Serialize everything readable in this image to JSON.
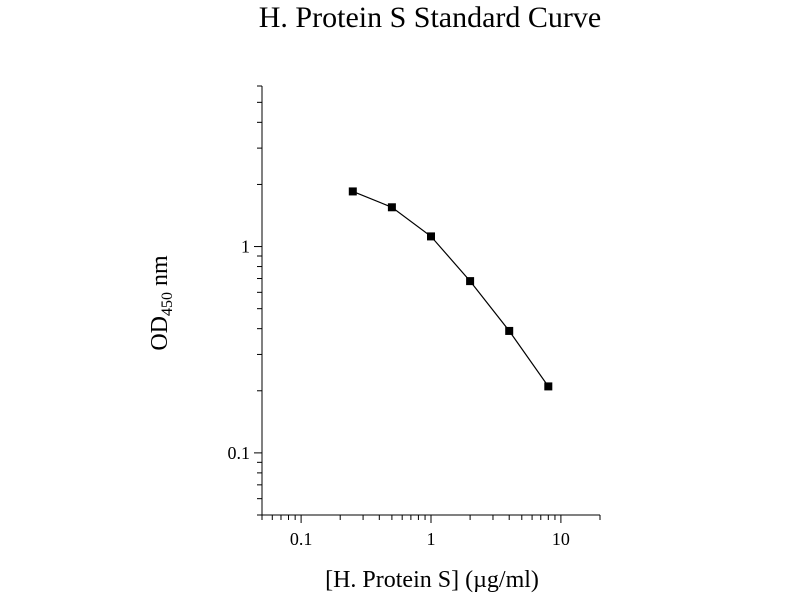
{
  "chart_data": {
    "type": "line",
    "title": "H. Protein S Standard Curve",
    "xlabel": "[H. Protein S] (µg/ml)",
    "ylabel": {
      "main": "OD",
      "subscript": "450",
      "suffix": " nm"
    },
    "x_scale": "log",
    "y_scale": "log",
    "xlim": [
      0.05,
      20
    ],
    "ylim": [
      0.05,
      6
    ],
    "x_ticks": [
      {
        "value": 0.1,
        "label": "0.1"
      },
      {
        "value": 1,
        "label": "1"
      },
      {
        "value": 10,
        "label": "10"
      }
    ],
    "y_ticks": [
      {
        "value": 0.1,
        "label": "0.1"
      },
      {
        "value": 1,
        "label": "1"
      }
    ],
    "grid": false,
    "series": [
      {
        "marker": "square",
        "color": "#000000",
        "x": [
          0.25,
          0.5,
          1,
          2,
          4,
          8
        ],
        "y": [
          1.85,
          1.55,
          1.12,
          0.68,
          0.39,
          0.21
        ]
      }
    ]
  }
}
